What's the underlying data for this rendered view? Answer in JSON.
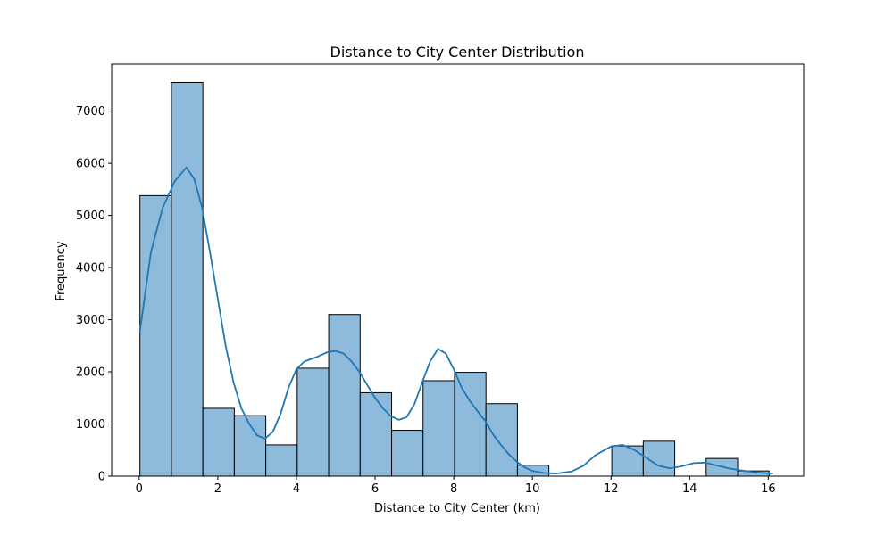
{
  "chart_data": {
    "type": "histogram",
    "title": "Distance to City Center Distribution",
    "xlabel": "Distance to City Center (km)",
    "ylabel": "Frequency",
    "xlim": [
      -0.7,
      16.9
    ],
    "ylim": [
      0,
      7900
    ],
    "xticks": [
      0,
      2,
      4,
      6,
      8,
      10,
      12,
      14,
      16
    ],
    "yticks": [
      0,
      1000,
      2000,
      3000,
      4000,
      5000,
      6000,
      7000
    ],
    "bin_edges": [
      0.02,
      0.82,
      1.62,
      2.42,
      3.22,
      4.02,
      4.82,
      5.62,
      6.42,
      7.22,
      8.02,
      8.82,
      9.62,
      10.42,
      11.22,
      12.02,
      12.82,
      13.62,
      14.42,
      15.22,
      16.02
    ],
    "counts": [
      5380,
      7550,
      1300,
      1160,
      600,
      2070,
      3100,
      1600,
      880,
      1830,
      1990,
      1390,
      210,
      0,
      0,
      580,
      670,
      0,
      340,
      100
    ],
    "kde": {
      "x": [
        0.02,
        0.3,
        0.6,
        0.9,
        1.2,
        1.4,
        1.6,
        1.8,
        2.0,
        2.2,
        2.4,
        2.6,
        2.8,
        3.0,
        3.2,
        3.4,
        3.6,
        3.8,
        4.0,
        4.2,
        4.5,
        4.8,
        5.0,
        5.2,
        5.4,
        5.6,
        5.8,
        6.0,
        6.2,
        6.4,
        6.6,
        6.8,
        7.0,
        7.2,
        7.4,
        7.6,
        7.8,
        8.0,
        8.2,
        8.4,
        8.6,
        8.8,
        9.0,
        9.2,
        9.4,
        9.6,
        9.8,
        10.0,
        10.3,
        10.6,
        11.0,
        11.3,
        11.6,
        12.0,
        12.3,
        12.6,
        12.9,
        13.2,
        13.5,
        13.8,
        14.1,
        14.4,
        14.7,
        15.0,
        15.3,
        15.6,
        15.9,
        16.1
      ],
      "y": [
        2780,
        4300,
        5150,
        5650,
        5920,
        5700,
        5150,
        4300,
        3400,
        2500,
        1800,
        1300,
        1000,
        780,
        720,
        850,
        1200,
        1700,
        2050,
        2200,
        2280,
        2380,
        2400,
        2350,
        2200,
        2000,
        1750,
        1500,
        1300,
        1150,
        1080,
        1130,
        1380,
        1800,
        2200,
        2440,
        2350,
        2050,
        1700,
        1450,
        1250,
        1060,
        800,
        600,
        420,
        280,
        170,
        100,
        60,
        50,
        90,
        200,
        400,
        570,
        600,
        500,
        350,
        200,
        150,
        190,
        250,
        260,
        200,
        150,
        110,
        80,
        60,
        50
      ]
    },
    "bar_color": "#8ebadb",
    "bar_edge_color": "#000000",
    "kde_color": "#1f77b4",
    "grid": false,
    "legend": "none"
  }
}
